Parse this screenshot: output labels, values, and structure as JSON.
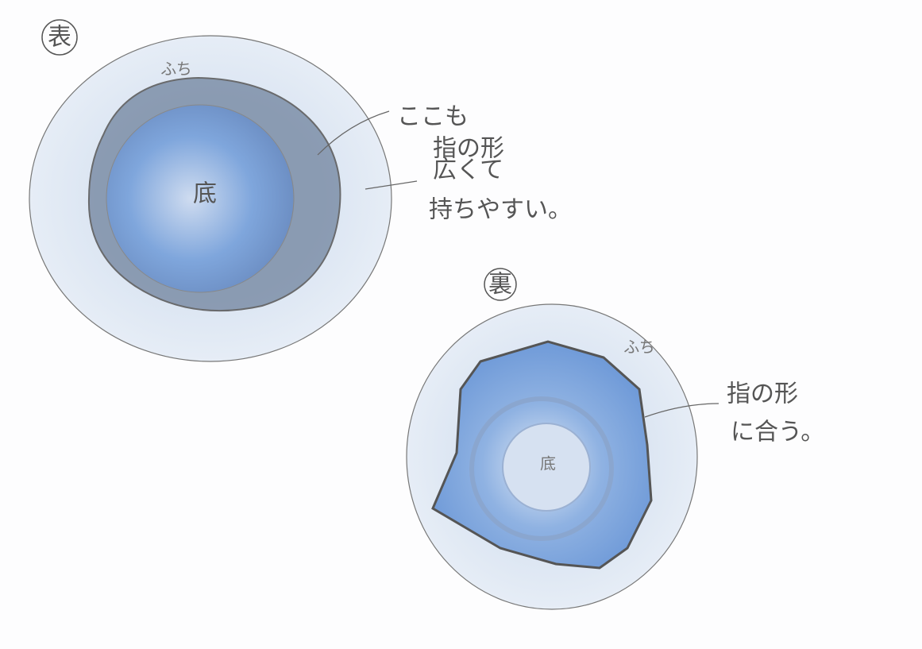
{
  "front": {
    "marker": "表",
    "rim": "ふち",
    "center": "底",
    "notes": [
      [
        "ここも",
        "指の形"
      ],
      [
        "広くて",
        "持ちやすい。"
      ]
    ]
  },
  "back": {
    "marker": "裏",
    "rim": "ふち",
    "center": "底",
    "notes": [
      [
        "指の形",
        "に合う。"
      ]
    ]
  }
}
